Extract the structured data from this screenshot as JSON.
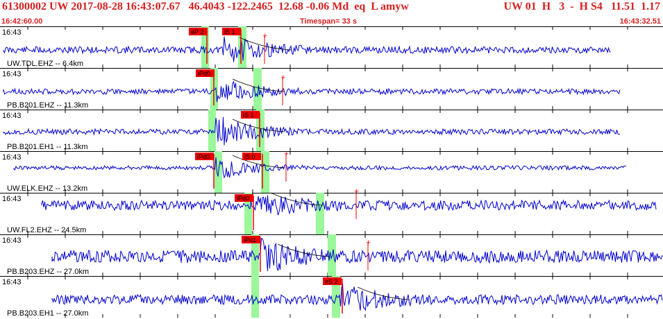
{
  "header": {
    "title": "61300002 UW 2017-08-28 16:43:07.67   46.4043 -122.2465  12.68 -0.06 Md  eq  L amyw",
    "right": "UW 01  H   3  -  H S4   11.51  1.17",
    "start_time": "16:42:60.00",
    "timespan": "Timespan=  33 s",
    "end_time": "16:43:32.51"
  },
  "colors": {
    "header": "#d62020",
    "trace": "#0000cc",
    "pick": "#ee0000",
    "window": "#9af79a",
    "axis": "#000000"
  },
  "traces": [
    {
      "time": "16:43",
      "label": "UW.TDL.EHZ -- 6.4km",
      "p_pick": "eP 2",
      "s_pick": "iS 1",
      "seed": 11,
      "amp": 5,
      "burst": 22
    },
    {
      "time": "16:43",
      "label": "PB.B201.EHZ -- 11.3km",
      "p_pick": "iPd0",
      "s_pick": "",
      "seed": 23,
      "amp": 4,
      "burst": 20
    },
    {
      "time": "16:43",
      "label": "PB.B201.EH1 -- 11.3km",
      "p_pick": "",
      "s_pick": "iS 1",
      "seed": 37,
      "amp": 4,
      "burst": 24
    },
    {
      "time": "16:43",
      "label": "UW.ELK.EHZ -- 13.2km",
      "p_pick": "iPd0",
      "s_pick": "iS 0",
      "seed": 41,
      "amp": 3,
      "burst": 18
    },
    {
      "time": "16:43",
      "label": "UW.FL2.EHZ -- 24.5km",
      "p_pick": "iPd0",
      "s_pick": "",
      "seed": 53,
      "amp": 7,
      "burst": 16
    },
    {
      "time": "16:43",
      "label": "PB.B203.EHZ -- 27.0km",
      "p_pick": "iPu1",
      "s_pick": "",
      "seed": 67,
      "amp": 9,
      "burst": 20
    },
    {
      "time": "16:43",
      "label": "PB.B203.EH1 -- 27.0km",
      "p_pick": "",
      "s_pick": "eS 2",
      "seed": 79,
      "amp": 7,
      "burst": 20
    }
  ]
}
